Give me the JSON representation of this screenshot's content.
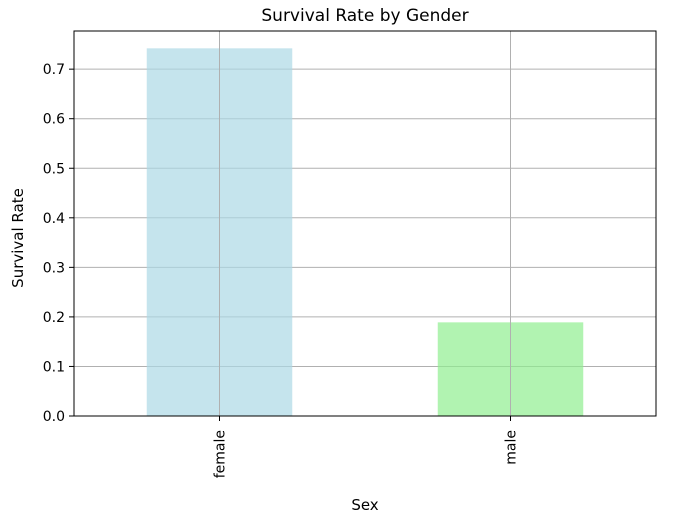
{
  "chart_data": {
    "type": "bar",
    "title": "Survival Rate by Gender",
    "xlabel": "Sex",
    "ylabel": "Survival Rate",
    "categories": [
      "female",
      "male"
    ],
    "values": [
      0.742,
      0.189
    ],
    "colors": [
      "#add8e6",
      "#90ee90"
    ],
    "ylim": [
      0,
      0.777
    ],
    "yticks": [
      0.0,
      0.1,
      0.2,
      0.3,
      0.4,
      0.5,
      0.6,
      0.7
    ],
    "ytick_labels": [
      "0.0",
      "0.1",
      "0.2",
      "0.3",
      "0.4",
      "0.5",
      "0.6",
      "0.7"
    ],
    "grid": true,
    "legend": "none"
  }
}
